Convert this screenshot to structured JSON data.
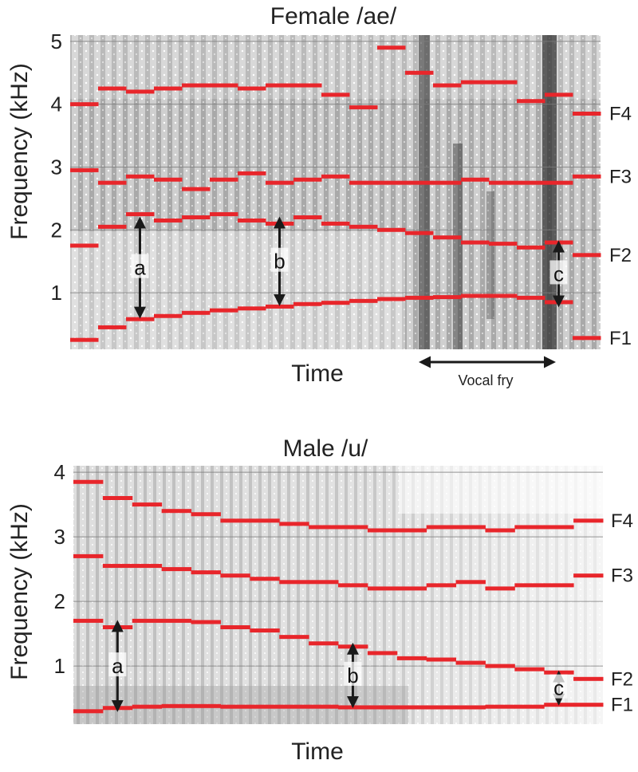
{
  "chart_data": [
    {
      "type": "line",
      "title": "Female /ae/",
      "xlabel": "Time",
      "ylabel": "Frequency (kHz)",
      "ylim": [
        0.1,
        5.1
      ],
      "yticks": [
        "1",
        "2",
        "3",
        "4",
        "5"
      ],
      "grid": true,
      "series": [
        {
          "name": "F4",
          "values": [
            4.0,
            4.25,
            4.2,
            4.25,
            4.3,
            4.3,
            4.25,
            4.3,
            4.3,
            4.15,
            3.95,
            4.9,
            4.5,
            4.3,
            4.35,
            4.35,
            4.05,
            4.15,
            3.85
          ]
        },
        {
          "name": "F3",
          "values": [
            2.95,
            2.75,
            2.85,
            2.8,
            2.65,
            2.8,
            2.9,
            2.75,
            2.8,
            2.85,
            2.75,
            2.75,
            2.75,
            2.75,
            2.8,
            2.75,
            2.75,
            2.75,
            2.85
          ]
        },
        {
          "name": "F2",
          "values": [
            1.75,
            2.05,
            2.25,
            2.15,
            2.2,
            2.25,
            2.15,
            2.1,
            2.2,
            2.1,
            2.05,
            2.0,
            1.95,
            1.88,
            1.8,
            1.78,
            1.72,
            1.8,
            1.6
          ]
        },
        {
          "name": "F1",
          "values": [
            0.25,
            0.45,
            0.58,
            0.63,
            0.68,
            0.72,
            0.75,
            0.78,
            0.82,
            0.84,
            0.87,
            0.9,
            0.92,
            0.93,
            0.95,
            0.95,
            0.92,
            0.85,
            0.28
          ]
        }
      ],
      "annotations": {
        "markers": [
          {
            "label": "a",
            "time_index": 2,
            "from_khz": 0.6,
            "to_khz": 2.2
          },
          {
            "label": "b",
            "time_index": 7,
            "from_khz": 0.8,
            "to_khz": 2.2
          },
          {
            "label": "c",
            "time_index": 17,
            "from_khz": 0.78,
            "to_khz": 1.82
          }
        ],
        "region_label": "Vocal fry"
      }
    },
    {
      "type": "line",
      "title": "Male /u/",
      "xlabel": "Time",
      "ylabel": "Frequency (kHz)",
      "ylim": [
        0.1,
        4.1
      ],
      "yticks": [
        "1",
        "2",
        "3",
        "4"
      ],
      "grid": true,
      "series": [
        {
          "name": "F4",
          "values": [
            3.85,
            3.6,
            3.5,
            3.4,
            3.35,
            3.25,
            3.25,
            3.2,
            3.15,
            3.15,
            3.1,
            3.1,
            3.15,
            3.15,
            3.1,
            3.15,
            3.15,
            3.25
          ]
        },
        {
          "name": "F3",
          "values": [
            2.7,
            2.55,
            2.55,
            2.5,
            2.45,
            2.4,
            2.35,
            2.3,
            2.3,
            2.25,
            2.2,
            2.2,
            2.25,
            2.3,
            2.2,
            2.25,
            2.25,
            2.4
          ]
        },
        {
          "name": "F2",
          "values": [
            1.7,
            1.6,
            1.7,
            1.7,
            1.68,
            1.6,
            1.55,
            1.45,
            1.35,
            1.3,
            1.2,
            1.12,
            1.1,
            1.05,
            1.0,
            0.95,
            0.9,
            0.8
          ]
        },
        {
          "name": "F1",
          "values": [
            0.3,
            0.35,
            0.37,
            0.38,
            0.38,
            0.37,
            0.37,
            0.37,
            0.37,
            0.36,
            0.36,
            0.36,
            0.36,
            0.36,
            0.37,
            0.37,
            0.4,
            0.4
          ]
        }
      ],
      "annotations": {
        "markers": [
          {
            "label": "a",
            "time_index": 1,
            "from_khz": 0.3,
            "to_khz": 1.7
          },
          {
            "label": "b",
            "time_index": 9,
            "from_khz": 0.36,
            "to_khz": 1.35
          },
          {
            "label": "c",
            "time_index": 16,
            "from_khz": 0.4,
            "to_khz": 0.92
          }
        ]
      }
    }
  ],
  "colors": {
    "formant_track": "#e8262b",
    "gridline": "#7d7d7d",
    "arrow": "#1a1a1a",
    "spectrogram_light": "#eeeeee",
    "spectrogram_dark": "#2a2a2a"
  }
}
